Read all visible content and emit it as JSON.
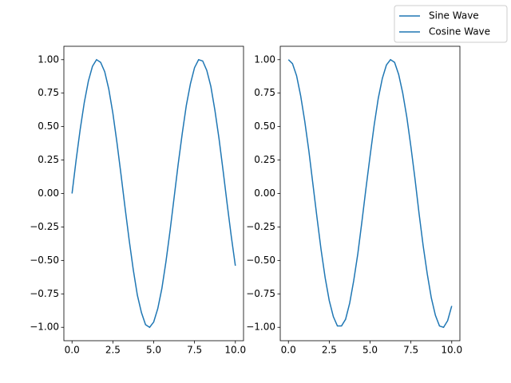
{
  "chart_data": [
    {
      "type": "line",
      "x": [
        0,
        0.25,
        0.5,
        0.75,
        1,
        1.25,
        1.5,
        1.75,
        2,
        2.25,
        2.5,
        2.75,
        3,
        3.25,
        3.5,
        3.75,
        4,
        4.25,
        4.5,
        4.75,
        5,
        5.25,
        5.5,
        5.75,
        6,
        6.25,
        6.5,
        6.75,
        7,
        7.25,
        7.5,
        7.75,
        8,
        8.25,
        8.5,
        8.75,
        9,
        9.25,
        9.5,
        9.75,
        10
      ],
      "series": [
        {
          "name": "Sine Wave",
          "color": "#1f77b4",
          "values": [
            0,
            0.25,
            0.48,
            0.68,
            0.84,
            0.95,
            1,
            0.98,
            0.91,
            0.78,
            0.6,
            0.38,
            0.14,
            -0.11,
            -0.35,
            -0.57,
            -0.76,
            -0.89,
            -0.98,
            -1,
            -0.96,
            -0.86,
            -0.71,
            -0.51,
            -0.28,
            -0.03,
            0.22,
            0.45,
            0.66,
            0.82,
            0.94,
            1,
            0.99,
            0.92,
            0.8,
            0.62,
            0.41,
            0.17,
            -0.08,
            -0.32,
            -0.54
          ]
        }
      ],
      "xlim": [
        -0.5,
        10.5
      ],
      "ylim": [
        -1.1,
        1.1
      ],
      "xticks": [
        {
          "value": 0,
          "label": "0.0"
        },
        2.5,
        {
          "value": 5,
          "label": "5.0"
        },
        7.5,
        {
          "value": 10,
          "label": "10.0"
        }
      ],
      "yticks": [
        {
          "value": -1,
          "label": "−1.00"
        },
        {
          "value": -0.75,
          "label": "−0.75"
        },
        {
          "value": -0.5,
          "label": "−0.50"
        },
        {
          "value": -0.25,
          "label": "−0.25"
        },
        {
          "value": 0,
          "label": "0.00"
        },
        0.25,
        {
          "value": 0.5,
          "label": "0.50"
        },
        0.75,
        {
          "value": 1,
          "label": "1.00"
        }
      ]
    },
    {
      "type": "line",
      "x": [
        0,
        0.25,
        0.5,
        0.75,
        1,
        1.25,
        1.5,
        1.75,
        2,
        2.25,
        2.5,
        2.75,
        3,
        3.25,
        3.5,
        3.75,
        4,
        4.25,
        4.5,
        4.75,
        5,
        5.25,
        5.5,
        5.75,
        6,
        6.25,
        6.5,
        6.75,
        7,
        7.25,
        7.5,
        7.75,
        8,
        8.25,
        8.5,
        8.75,
        9,
        9.25,
        9.5,
        9.75,
        10
      ],
      "series": [
        {
          "name": "Cosine Wave",
          "color": "#1f77b4",
          "values": [
            1,
            0.97,
            0.88,
            0.73,
            0.54,
            0.32,
            0.07,
            -0.18,
            -0.42,
            -0.63,
            -0.8,
            -0.92,
            -0.99,
            -0.99,
            -0.94,
            -0.82,
            -0.65,
            -0.45,
            -0.21,
            0.04,
            0.28,
            0.51,
            0.71,
            0.86,
            0.96,
            1,
            0.98,
            0.89,
            0.75,
            0.57,
            0.35,
            0.11,
            -0.15,
            -0.39,
            -0.6,
            -0.78,
            -0.91,
            -0.99,
            -1,
            -0.95,
            -0.84
          ]
        }
      ],
      "xlim": [
        -0.5,
        10.5
      ],
      "ylim": [
        -1.1,
        1.1
      ],
      "xticks": [
        {
          "value": 0,
          "label": "0.0"
        },
        2.5,
        {
          "value": 5,
          "label": "5.0"
        },
        7.5,
        {
          "value": 10,
          "label": "10.0"
        }
      ],
      "yticks": [
        {
          "value": -1,
          "label": "−1.00"
        },
        {
          "value": -0.75,
          "label": "−0.75"
        },
        {
          "value": -0.5,
          "label": "−0.50"
        },
        {
          "value": -0.25,
          "label": "−0.25"
        },
        {
          "value": 0,
          "label": "0.00"
        },
        0.25,
        {
          "value": 0.5,
          "label": "0.50"
        },
        0.75,
        {
          "value": 1,
          "label": "1.00"
        }
      ]
    }
  ]
}
